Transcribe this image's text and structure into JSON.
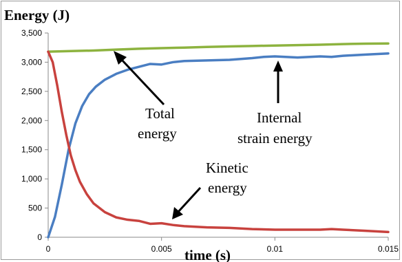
{
  "chart_data": {
    "type": "line",
    "ylabel": "Energy  (J)",
    "xlabel": "time  (s)",
    "xlim": [
      0,
      0.015
    ],
    "ylim": [
      0,
      3500
    ],
    "x_ticks": [
      0,
      0.005,
      0.01,
      0.015
    ],
    "x_tick_labels": [
      "0",
      "0.005",
      "0.01",
      "0.015"
    ],
    "y_ticks": [
      0,
      500,
      1000,
      1500,
      2000,
      2500,
      3000,
      3500
    ],
    "y_tick_labels": [
      "0",
      "500",
      "1,000",
      "1,500",
      "2,000",
      "2,500",
      "3,000",
      "3,500"
    ],
    "grid": false,
    "legend": "none",
    "series": [
      {
        "name": "Total energy",
        "color": "#8DB33F",
        "x": [
          0,
          0.001,
          0.002,
          0.003,
          0.004,
          0.005,
          0.006,
          0.007,
          0.008,
          0.009,
          0.01,
          0.011,
          0.012,
          0.013,
          0.014,
          0.015
        ],
        "y": [
          3180,
          3190,
          3200,
          3215,
          3230,
          3240,
          3250,
          3262,
          3270,
          3278,
          3285,
          3292,
          3300,
          3310,
          3318,
          3320
        ]
      },
      {
        "name": "Internal strain energy",
        "color": "#4A7EC2",
        "x": [
          0,
          0.0003,
          0.0006,
          0.0009,
          0.0012,
          0.0015,
          0.0018,
          0.0021,
          0.0025,
          0.003,
          0.0035,
          0.004,
          0.0045,
          0.005,
          0.0055,
          0.006,
          0.007,
          0.008,
          0.009,
          0.0095,
          0.01,
          0.011,
          0.012,
          0.0125,
          0.013,
          0.014,
          0.015
        ],
        "y": [
          0,
          350,
          900,
          1500,
          1950,
          2250,
          2450,
          2580,
          2700,
          2800,
          2870,
          2920,
          2970,
          2960,
          3000,
          3020,
          3030,
          3040,
          3070,
          3090,
          3100,
          3080,
          3100,
          3090,
          3110,
          3130,
          3150
        ]
      },
      {
        "name": "Kinetic energy",
        "color": "#C8423E",
        "x": [
          0,
          0.0002,
          0.0004,
          0.0006,
          0.0008,
          0.001,
          0.0012,
          0.0014,
          0.0017,
          0.002,
          0.0025,
          0.003,
          0.0035,
          0.004,
          0.0045,
          0.005,
          0.0055,
          0.006,
          0.007,
          0.008,
          0.009,
          0.01,
          0.011,
          0.012,
          0.0125,
          0.013,
          0.014,
          0.015
        ],
        "y": [
          3180,
          3000,
          2600,
          2150,
          1750,
          1400,
          1150,
          950,
          740,
          580,
          430,
          340,
          300,
          280,
          230,
          240,
          210,
          190,
          170,
          160,
          140,
          130,
          130,
          130,
          140,
          130,
          110,
          90
        ]
      }
    ],
    "annotations": [
      {
        "lines": [
          "Total",
          "energy"
        ],
        "target_series": "Total energy"
      },
      {
        "lines": [
          "Internal",
          "strain  energy"
        ],
        "target_series": "Internal strain energy"
      },
      {
        "lines": [
          "Kinetic",
          "energy"
        ],
        "target_series": "Kinetic energy"
      }
    ]
  }
}
